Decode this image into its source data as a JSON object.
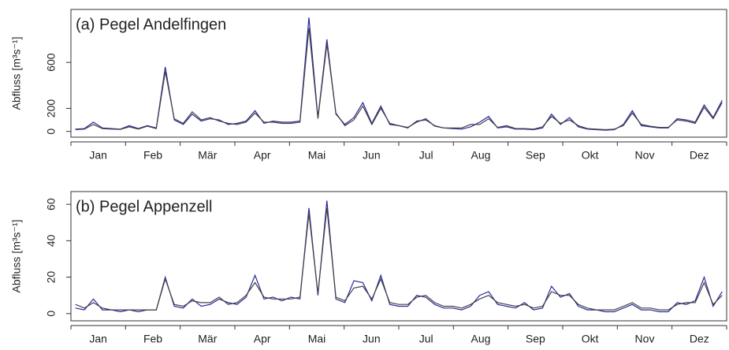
{
  "chart_data": [
    {
      "type": "line",
      "title": "(a) Pegel Andelfingen",
      "y_label": "Abfluss [m³s⁻¹]",
      "x_labels": [
        "Jan",
        "Feb",
        "Mär",
        "Apr",
        "Mai",
        "Jun",
        "Jul",
        "Aug",
        "Sep",
        "Okt",
        "Nov",
        "Dez"
      ],
      "ylim": [
        -50,
        1060
      ],
      "yticks": [
        0,
        200,
        600
      ],
      "series": [
        {
          "color": "#2a2aa0",
          "values": [
            20,
            25,
            80,
            30,
            25,
            20,
            50,
            25,
            50,
            30,
            560,
            100,
            60,
            150,
            90,
            110,
            100,
            60,
            70,
            90,
            180,
            70,
            90,
            80,
            80,
            90,
            990,
            120,
            800,
            150,
            60,
            120,
            250,
            70,
            220,
            60,
            50,
            30,
            90,
            100,
            50,
            30,
            25,
            20,
            40,
            80,
            130,
            30,
            40,
            20,
            20,
            15,
            30,
            150,
            60,
            120,
            40,
            20,
            15,
            10,
            15,
            60,
            180,
            50,
            40,
            30,
            30,
            110,
            100,
            80,
            230,
            120,
            270
          ]
        },
        {
          "color": "#444444",
          "values": [
            15,
            20,
            60,
            25,
            20,
            18,
            40,
            20,
            45,
            25,
            520,
            110,
            70,
            170,
            100,
            120,
            90,
            70,
            60,
            80,
            160,
            80,
            80,
            70,
            70,
            80,
            900,
            110,
            760,
            160,
            50,
            100,
            220,
            60,
            200,
            70,
            50,
            35,
            80,
            110,
            45,
            30,
            30,
            30,
            60,
            60,
            110,
            35,
            50,
            25,
            25,
            20,
            40,
            130,
            70,
            100,
            50,
            25,
            20,
            15,
            20,
            50,
            160,
            60,
            45,
            35,
            35,
            100,
            90,
            70,
            210,
            110,
            250
          ]
        }
      ]
    },
    {
      "type": "line",
      "title": "(b) Pegel Appenzell",
      "y_label": "Abfluss [m³s⁻¹]",
      "x_labels": [
        "Jan",
        "Feb",
        "Mär",
        "Apr",
        "Mai",
        "Jun",
        "Jul",
        "Aug",
        "Sep",
        "Okt",
        "Nov",
        "Dez"
      ],
      "ylim": [
        -4,
        67
      ],
      "yticks": [
        0,
        20,
        40,
        60
      ],
      "series": [
        {
          "color": "#2a2aa0",
          "values": [
            3,
            2,
            8,
            2,
            2,
            1,
            2,
            1,
            2,
            2,
            20,
            4,
            3,
            8,
            4,
            5,
            8,
            6,
            5,
            9,
            21,
            8,
            9,
            7,
            9,
            8,
            58,
            10,
            62,
            8,
            6,
            18,
            17,
            7,
            21,
            5,
            4,
            4,
            10,
            9,
            5,
            3,
            3,
            2,
            4,
            10,
            12,
            5,
            4,
            3,
            6,
            2,
            3,
            15,
            9,
            11,
            4,
            2,
            2,
            1,
            1,
            3,
            5,
            2,
            2,
            1,
            1,
            6,
            5,
            7,
            20,
            4,
            12
          ]
        },
        {
          "color": "#444444",
          "values": [
            5,
            3,
            6,
            3,
            2,
            2,
            2,
            2,
            2,
            2,
            19,
            5,
            4,
            7,
            6,
            6,
            9,
            5,
            6,
            10,
            17,
            9,
            8,
            8,
            8,
            9,
            55,
            11,
            58,
            9,
            7,
            14,
            15,
            8,
            19,
            6,
            5,
            5,
            9,
            10,
            6,
            4,
            4,
            3,
            5,
            8,
            10,
            6,
            5,
            4,
            5,
            3,
            4,
            12,
            10,
            10,
            5,
            3,
            2,
            2,
            2,
            4,
            6,
            3,
            3,
            2,
            2,
            5,
            6,
            6,
            17,
            5,
            10
          ]
        }
      ]
    }
  ]
}
